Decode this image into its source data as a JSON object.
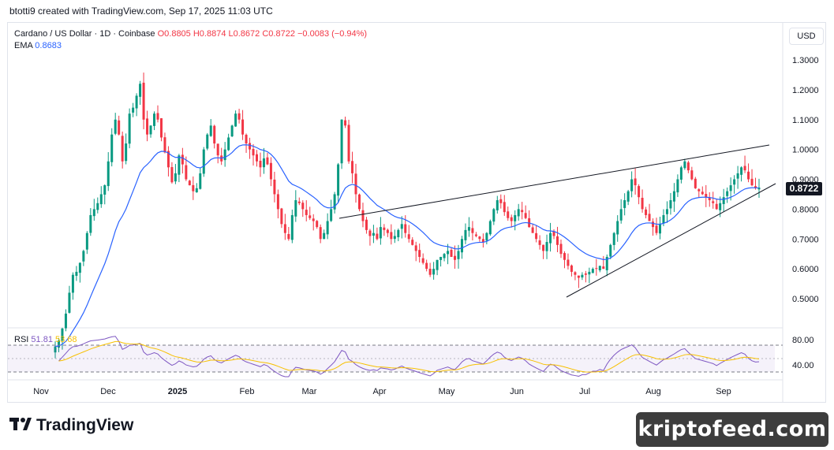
{
  "header": {
    "text": "btotti9 created with TradingView.com, Sep 17, 2025 11:03 UTC"
  },
  "legend": {
    "symbol": "Cardano / US Dollar · 1D · Coinbase",
    "open": "O0.8805",
    "high": "H0.8874",
    "low": "L0.8672",
    "close": "C0.8722",
    "change": "−0.0083 (−0.94%)",
    "ema_label": "EMA",
    "ema_value": "0.8683"
  },
  "rsi_legend": {
    "label": "RSI",
    "value1": "51.81",
    "value2": "53.68"
  },
  "currency": "USD",
  "last_price": "0.8722",
  "footer": {
    "brand": "TradingView"
  },
  "watermark": "kriptofeed.com",
  "colors": {
    "up": "#089981",
    "down": "#f23645",
    "ema": "#2962ff",
    "rsi": "#7e57c2",
    "rsi_ma": "#f7c000",
    "trendline": "#131722"
  },
  "chart_data": {
    "type": "candlestick",
    "title": "Cardano / US Dollar · 1D · Coinbase",
    "y_axis": {
      "ticks": [
        "1.3000",
        "1.2000",
        "1.1000",
        "1.0000",
        "0.9000",
        "0.8000",
        "0.7000",
        "0.6000",
        "0.5000"
      ],
      "ylim": [
        0.46,
        1.37
      ]
    },
    "x_axis": {
      "ticks": [
        "Nov",
        "Dec",
        "2025",
        "Feb",
        "Mar",
        "Apr",
        "May",
        "Jun",
        "Jul",
        "Aug",
        "Sep"
      ]
    },
    "close_series": [
      0.34,
      0.36,
      0.4,
      0.45,
      0.52,
      0.58,
      0.59,
      0.62,
      0.66,
      0.72,
      0.78,
      0.8,
      0.82,
      0.85,
      0.88,
      0.96,
      1.05,
      1.1,
      1.05,
      0.96,
      1.02,
      1.12,
      1.14,
      1.18,
      1.22,
      1.1,
      1.05,
      1.08,
      1.12,
      1.1,
      1.04,
      0.99,
      0.94,
      0.89,
      0.92,
      0.98,
      0.95,
      0.9,
      0.88,
      0.86,
      0.87,
      0.92,
      1.0,
      1.05,
      1.08,
      1.02,
      0.98,
      0.96,
      1.0,
      1.04,
      1.08,
      1.12,
      1.1,
      1.05,
      1.02,
      1.0,
      0.98,
      0.96,
      0.94,
      0.97,
      0.95,
      0.9,
      0.85,
      0.8,
      0.75,
      0.72,
      0.7,
      0.78,
      0.83,
      0.82,
      0.8,
      0.78,
      0.77,
      0.76,
      0.74,
      0.7,
      0.72,
      0.76,
      0.8,
      0.85,
      0.95,
      1.1,
      1.08,
      0.96,
      0.92,
      0.85,
      0.8,
      0.76,
      0.73,
      0.71,
      0.72,
      0.7,
      0.74,
      0.73,
      0.72,
      0.7,
      0.71,
      0.73,
      0.75,
      0.72,
      0.7,
      0.68,
      0.66,
      0.64,
      0.62,
      0.6,
      0.58,
      0.6,
      0.63,
      0.64,
      0.65,
      0.66,
      0.64,
      0.63,
      0.66,
      0.7,
      0.73,
      0.74,
      0.72,
      0.71,
      0.7,
      0.69,
      0.72,
      0.76,
      0.8,
      0.83,
      0.82,
      0.79,
      0.77,
      0.76,
      0.78,
      0.8,
      0.79,
      0.77,
      0.74,
      0.72,
      0.7,
      0.68,
      0.66,
      0.69,
      0.72,
      0.71,
      0.68,
      0.65,
      0.63,
      0.61,
      0.59,
      0.58,
      0.57,
      0.58,
      0.58,
      0.59,
      0.6,
      0.6,
      0.61,
      0.6,
      0.64,
      0.68,
      0.72,
      0.76,
      0.8,
      0.83,
      0.86,
      0.9,
      0.88,
      0.84,
      0.8,
      0.78,
      0.76,
      0.74,
      0.72,
      0.75,
      0.78,
      0.8,
      0.83,
      0.86,
      0.9,
      0.94,
      0.96,
      0.93,
      0.9,
      0.87,
      0.86,
      0.85,
      0.84,
      0.83,
      0.82,
      0.8,
      0.82,
      0.84,
      0.86,
      0.88,
      0.9,
      0.92,
      0.94,
      0.93,
      0.9,
      0.88,
      0.87,
      0.8722
    ],
    "ema": {
      "name": "EMA",
      "last": 0.8683
    },
    "trendlines": [
      {
        "from": [
          0.75
        ],
        "to": [
          1.02
        ]
      },
      {
        "from": [
          0.51
        ],
        "to": [
          0.88
        ]
      }
    ],
    "rsi": {
      "ticks": [
        "80.00",
        "40.00"
      ],
      "last": 51.81,
      "ma_last": 53.68
    }
  }
}
